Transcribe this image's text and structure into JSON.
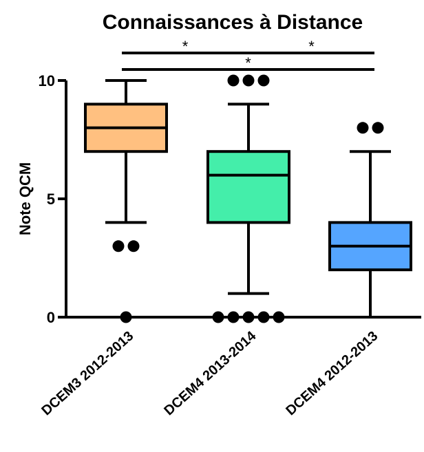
{
  "chart_data": {
    "type": "box",
    "title": "Connaissances à Distance",
    "xlabel": "",
    "ylabel": "Note QCM",
    "ylim": [
      0,
      10
    ],
    "yticks": [
      "0",
      "5",
      "10"
    ],
    "categories": [
      "DCEM3 2012-2013",
      "DCEM4 2013-2014",
      "DCEM4 2012-2013"
    ],
    "boxes": [
      {
        "name": "DCEM3 2012-2013",
        "color": "#FFC080",
        "whisker_low": 4,
        "q1": 7,
        "median": 8,
        "q3": 9,
        "whisker_high": 10,
        "outliers": [
          3,
          3,
          0
        ]
      },
      {
        "name": "DCEM4 2013-2014",
        "color": "#44EEAA",
        "whisker_low": 1,
        "q1": 4,
        "median": 6,
        "q3": 7,
        "whisker_high": 9,
        "outliers": [
          10,
          10,
          10,
          0,
          0,
          0,
          0,
          0
        ]
      },
      {
        "name": "DCEM4 2012-2013",
        "color": "#55A5FF",
        "whisker_low": 0,
        "q1": 2,
        "median": 3,
        "q3": 4,
        "whisker_high": 7,
        "outliers": [
          8,
          8
        ]
      }
    ],
    "significance": [
      {
        "from": 0,
        "to": 1,
        "label": "*"
      },
      {
        "from": 1,
        "to": 2,
        "label": "*"
      },
      {
        "from": 0,
        "to": 2,
        "label": "*"
      }
    ],
    "grid": false,
    "legend": "none"
  }
}
